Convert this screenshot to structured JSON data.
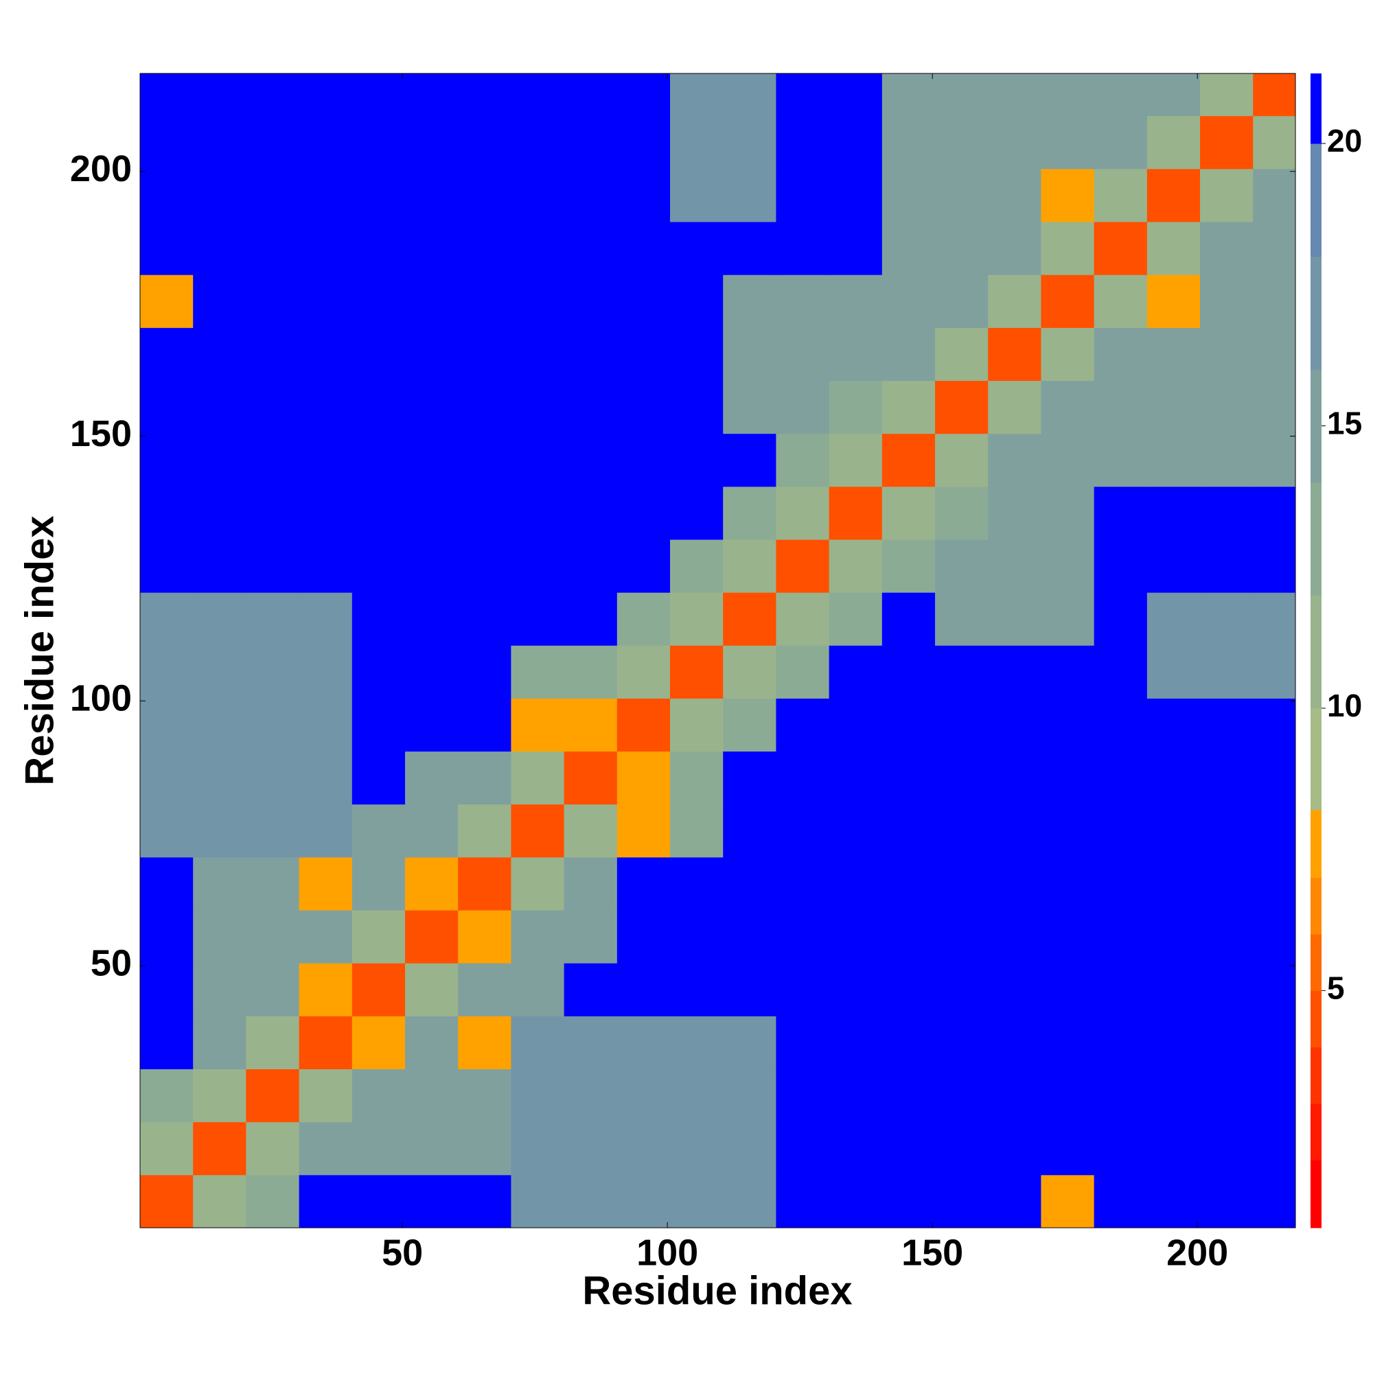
{
  "chart_data": {
    "type": "heatmap",
    "x_label": "Residue index",
    "y_label": "Residue index",
    "xlim": [
      0.5,
      218.5
    ],
    "ylim": [
      0.5,
      218.5
    ],
    "xticks": [
      50,
      100,
      150,
      200
    ],
    "yticks": [
      50,
      100,
      150,
      200
    ],
    "xbins": [
      0.5,
      10.5,
      20.5,
      30.5,
      40.5,
      50.5,
      60.5,
      70.5,
      80.5,
      90.5,
      100.5,
      110.5,
      120.5,
      130.5,
      140.5,
      150.5,
      160.5,
      170.5,
      180.5,
      190.5,
      200.5,
      210.5,
      218.5
    ],
    "ybins": [
      0.5,
      10.5,
      20.5,
      30.5,
      40.5,
      50.5,
      60.5,
      70.5,
      80.5,
      90.5,
      100.5,
      110.5,
      120.5,
      130.5,
      140.5,
      150.5,
      160.5,
      170.5,
      180.5,
      190.5,
      200.5,
      210.5,
      218.5
    ],
    "z": [
      [
        4,
        11,
        13,
        25,
        25,
        25,
        25,
        16,
        16,
        16,
        16,
        16,
        25,
        25,
        25,
        25,
        25,
        8,
        25,
        25,
        25,
        25
      ],
      [
        11,
        4,
        11,
        14,
        14,
        14,
        14,
        16,
        16,
        16,
        16,
        16,
        25,
        25,
        25,
        25,
        25,
        25,
        25,
        25,
        25,
        25
      ],
      [
        13,
        11,
        4,
        11,
        14,
        14,
        14,
        16,
        16,
        16,
        16,
        16,
        25,
        25,
        25,
        25,
        25,
        25,
        25,
        25,
        25,
        25
      ],
      [
        25,
        14,
        11,
        4,
        7,
        14,
        8,
        16,
        16,
        16,
        16,
        16,
        25,
        25,
        25,
        25,
        25,
        25,
        25,
        25,
        25,
        25
      ],
      [
        25,
        14,
        14,
        7,
        4,
        11,
        14,
        15,
        25,
        25,
        25,
        25,
        25,
        25,
        25,
        25,
        25,
        25,
        25,
        25,
        25,
        25
      ],
      [
        25,
        14,
        14,
        14,
        11,
        4,
        7,
        15,
        15,
        25,
        25,
        25,
        25,
        25,
        25,
        25,
        25,
        25,
        25,
        25,
        25,
        25
      ],
      [
        25,
        14,
        14,
        8,
        14,
        7,
        4,
        11,
        15,
        25,
        25,
        25,
        25,
        25,
        25,
        25,
        25,
        25,
        25,
        25,
        25,
        25
      ],
      [
        16,
        16,
        16,
        16,
        15,
        15,
        11,
        4,
        11,
        8,
        13,
        25,
        25,
        25,
        25,
        25,
        25,
        25,
        25,
        25,
        25,
        25
      ],
      [
        16,
        16,
        16,
        16,
        25,
        15,
        15,
        11,
        4,
        7,
        13,
        25,
        25,
        25,
        25,
        25,
        25,
        25,
        25,
        25,
        25,
        25
      ],
      [
        16,
        16,
        16,
        16,
        25,
        25,
        25,
        8,
        7,
        4,
        11,
        13,
        25,
        25,
        25,
        25,
        25,
        25,
        25,
        25,
        25,
        25
      ],
      [
        16,
        16,
        16,
        16,
        25,
        25,
        25,
        13,
        13,
        11,
        4,
        11,
        13,
        25,
        25,
        25,
        25,
        25,
        25,
        17,
        17,
        17
      ],
      [
        16,
        16,
        16,
        16,
        25,
        25,
        25,
        25,
        25,
        13,
        11,
        4,
        11,
        13,
        25,
        15,
        15,
        15,
        25,
        17,
        17,
        17
      ],
      [
        25,
        25,
        25,
        25,
        25,
        25,
        25,
        25,
        25,
        25,
        13,
        11,
        4,
        11,
        13,
        15,
        15,
        15,
        25,
        25,
        25,
        25
      ],
      [
        25,
        25,
        25,
        25,
        25,
        25,
        25,
        25,
        25,
        25,
        25,
        13,
        11,
        4,
        11,
        13,
        15,
        15,
        25,
        25,
        25,
        25
      ],
      [
        25,
        25,
        25,
        25,
        25,
        25,
        25,
        25,
        25,
        25,
        25,
        25,
        13,
        11,
        4,
        11,
        15,
        15,
        15,
        15,
        15,
        15
      ],
      [
        25,
        25,
        25,
        25,
        25,
        25,
        25,
        25,
        25,
        25,
        25,
        15,
        15,
        13,
        11,
        4,
        11,
        15,
        15,
        15,
        15,
        15
      ],
      [
        25,
        25,
        25,
        25,
        25,
        25,
        25,
        25,
        25,
        25,
        25,
        15,
        15,
        15,
        15,
        11,
        4,
        11,
        15,
        15,
        15,
        15
      ],
      [
        8,
        25,
        25,
        25,
        25,
        25,
        25,
        25,
        25,
        25,
        25,
        15,
        15,
        15,
        15,
        15,
        11,
        4,
        11,
        7,
        15,
        15
      ],
      [
        25,
        25,
        25,
        25,
        25,
        25,
        25,
        25,
        25,
        25,
        25,
        25,
        25,
        25,
        15,
        15,
        15,
        11,
        4,
        11,
        15,
        15
      ],
      [
        25,
        25,
        25,
        25,
        25,
        25,
        25,
        25,
        25,
        25,
        17,
        17,
        25,
        25,
        15,
        15,
        15,
        7,
        11,
        4,
        11,
        15
      ],
      [
        25,
        25,
        25,
        25,
        25,
        25,
        25,
        25,
        25,
        25,
        17,
        17,
        25,
        25,
        15,
        15,
        15,
        15,
        15,
        11,
        4,
        11
      ],
      [
        25,
        25,
        25,
        25,
        25,
        25,
        25,
        25,
        25,
        25,
        17,
        17,
        25,
        25,
        15,
        15,
        15,
        15,
        15,
        15,
        11,
        4
      ]
    ],
    "colorbar": {
      "levels": [
        0.8,
        2,
        3,
        4,
        5,
        6,
        7,
        8.2,
        10,
        12,
        14,
        16,
        18,
        20,
        21.24
      ],
      "colors": [
        "#ff0000",
        "#ff1a00",
        "#ff3300",
        "#ff5000",
        "#ff6a00",
        "#ff8800",
        "#ffa200",
        "#a6bb86",
        "#99b48c",
        "#8cab95",
        "#80a09e",
        "#7395a8",
        "#6688b3",
        "#0000ff"
      ],
      "ticks": [
        5,
        10,
        15,
        20
      ]
    }
  }
}
